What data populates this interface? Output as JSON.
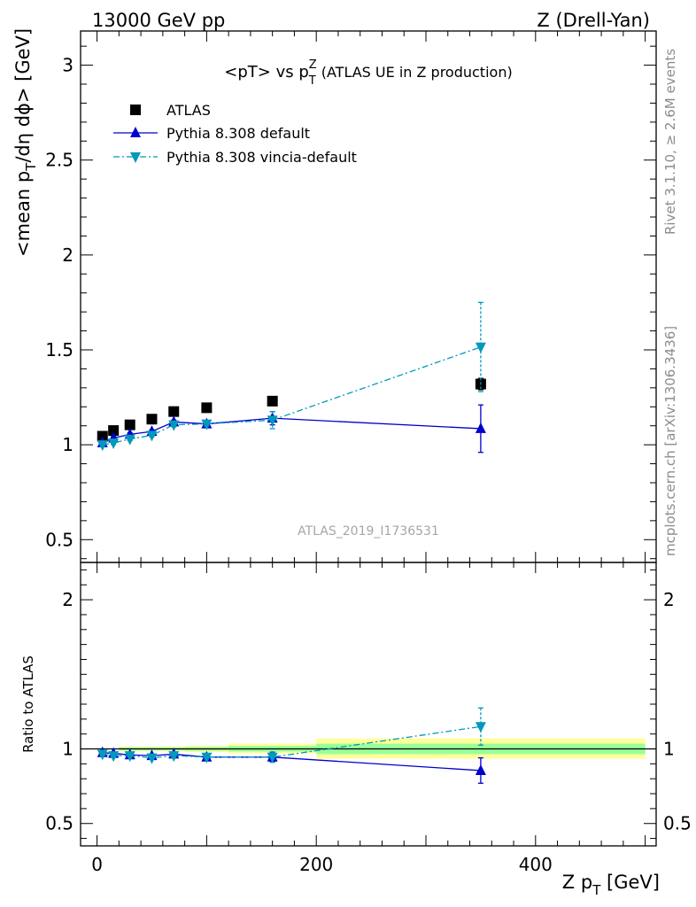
{
  "header": {
    "left": "13000 GeV pp",
    "right": "Z (Drell-Yan)"
  },
  "side": {
    "rivet": "Rivet 3.1.10, ≥ 2.6M events",
    "mcplots": "mcplots.cern.ch [arXiv:1306.3436]"
  },
  "watermark": "ATLAS_2019_I1736531",
  "chart_data": [
    {
      "type": "scatter",
      "panel": "main",
      "title_pre": "<pT> vs p",
      "title_sub": "T",
      "title_sup": "Z",
      "title_post": " (ATLAS UE in Z production)",
      "ylabel": "<mean p_T/dη dϕ> [GeV]",
      "xlim": [
        -15,
        510
      ],
      "ylim": [
        0.38,
        3.18
      ],
      "y_ticks": [
        0.5,
        1,
        1.5,
        2,
        2.5,
        3
      ],
      "y_tick_labels": [
        "0.5",
        "1",
        "1.5",
        "2",
        "2.5",
        "3"
      ],
      "legend_position": "top-left",
      "series": [
        {
          "name": "ATLAS",
          "marker": "square",
          "color": "#000000",
          "line": "none",
          "x": [
            5,
            15,
            30,
            50,
            70,
            100,
            160,
            350
          ],
          "y": [
            1.045,
            1.075,
            1.105,
            1.135,
            1.175,
            1.195,
            1.23,
            1.32
          ],
          "yerr": [
            0.01,
            0.01,
            0.01,
            0.01,
            0.01,
            0.01,
            0.015,
            0.03
          ]
        },
        {
          "name": "Pythia 8.308 default",
          "marker": "triangle-up",
          "color": "#0000cc",
          "line": "solid",
          "x": [
            5,
            15,
            30,
            50,
            70,
            100,
            160,
            350
          ],
          "y": [
            1.01,
            1.035,
            1.055,
            1.07,
            1.12,
            1.11,
            1.14,
            1.085
          ],
          "yerr": [
            0.008,
            0.008,
            0.008,
            0.008,
            0.01,
            0.012,
            0.035,
            0.125
          ]
        },
        {
          "name": "Pythia 8.308 vincia-default",
          "marker": "triangle-down",
          "color": "#0099bb",
          "line": "dashdot",
          "x": [
            5,
            15,
            30,
            50,
            70,
            100,
            160,
            350
          ],
          "y": [
            1.0,
            1.01,
            1.03,
            1.05,
            1.105,
            1.11,
            1.13,
            1.515
          ],
          "yerr": [
            0.008,
            0.008,
            0.008,
            0.008,
            0.01,
            0.012,
            0.045,
            0.235
          ]
        }
      ]
    },
    {
      "type": "scatter",
      "panel": "ratio",
      "ylabel": "Ratio to ATLAS",
      "xlabel": "Z p_T [GeV]",
      "xlim": [
        -15,
        510
      ],
      "ylim": [
        0.35,
        2.25
      ],
      "y_ticks": [
        0.5,
        1,
        2
      ],
      "y_tick_labels": [
        "0.5",
        "1",
        "2"
      ],
      "x_ticks": [
        0,
        200,
        400
      ],
      "x_tick_labels": [
        "0",
        "200",
        "400"
      ],
      "bands": [
        {
          "x0": 20,
          "x1": 80,
          "yellow": [
            0.985,
            1.015
          ],
          "green": [
            0.99,
            1.01
          ]
        },
        {
          "x0": 80,
          "x1": 120,
          "yellow": [
            0.98,
            1.02
          ],
          "green": [
            0.988,
            1.012
          ]
        },
        {
          "x0": 120,
          "x1": 200,
          "yellow": [
            0.97,
            1.035
          ],
          "green": [
            0.982,
            1.02
          ]
        },
        {
          "x0": 200,
          "x1": 500,
          "yellow": [
            0.935,
            1.07
          ],
          "green": [
            0.965,
            1.035
          ]
        }
      ],
      "series": [
        {
          "name": "Pythia 8.308 default",
          "marker": "triangle-up",
          "color": "#0000cc",
          "line": "solid",
          "x": [
            5,
            15,
            30,
            50,
            70,
            100,
            160,
            350
          ],
          "y": [
            0.975,
            0.97,
            0.96,
            0.955,
            0.965,
            0.945,
            0.945,
            0.855
          ],
          "yerr": [
            0.008,
            0.008,
            0.008,
            0.008,
            0.01,
            0.012,
            0.03,
            0.085
          ]
        },
        {
          "name": "Pythia 8.308 vincia-default",
          "marker": "triangle-down",
          "color": "#0099bb",
          "line": "dashdot",
          "x": [
            5,
            15,
            30,
            50,
            70,
            100,
            160,
            350
          ],
          "y": [
            0.965,
            0.955,
            0.955,
            0.94,
            0.955,
            0.945,
            0.945,
            1.15
          ],
          "yerr": [
            0.008,
            0.008,
            0.008,
            0.008,
            0.01,
            0.012,
            0.035,
            0.125
          ]
        }
      ]
    }
  ]
}
